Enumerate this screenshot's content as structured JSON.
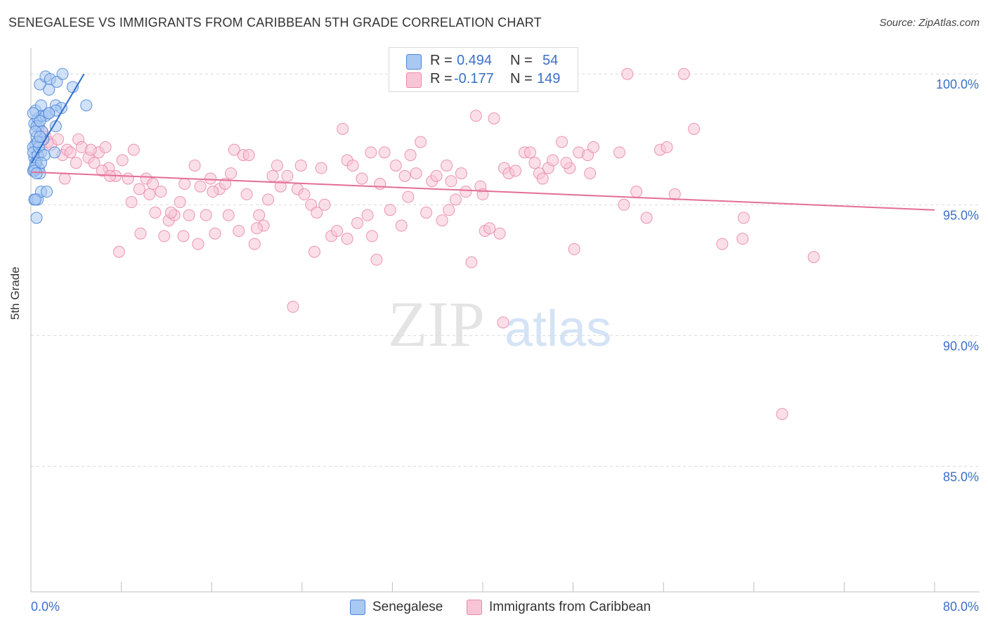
{
  "title": "SENEGALESE VS IMMIGRANTS FROM CARIBBEAN 5TH GRADE CORRELATION CHART",
  "source": "Source: ZipAtlas.com",
  "watermark": {
    "zip": "ZIP",
    "atlas": "atlas"
  },
  "legend_top": {
    "rows": [
      {
        "r_label": "R =",
        "r_value": "0.494",
        "n_label": "N =",
        "n_value": "54"
      },
      {
        "r_label": "R =",
        "r_value": "-0.177",
        "n_label": "N =",
        "n_value": "149"
      }
    ]
  },
  "chart_data": {
    "type": "scatter",
    "title": "SENEGALESE VS IMMIGRANTS FROM CARIBBEAN 5TH GRADE CORRELATION CHART",
    "xlabel": "",
    "ylabel": "5th Grade",
    "xlim": [
      0,
      80
    ],
    "ylim": [
      80.2,
      101
    ],
    "x_tick_labels": [
      "0.0%",
      "80.0%"
    ],
    "y_ticks": [
      85,
      90,
      95,
      100
    ],
    "y_tick_labels": [
      "85.0%",
      "90.0%",
      "95.0%",
      "100.0%"
    ],
    "grid": true,
    "colors": {
      "blue_fill": "#a9c8f2",
      "blue_stroke": "#4d86d8",
      "blue_line": "#2f6ccc",
      "pink_fill": "#f7c5d6",
      "pink_stroke": "#ea8aab",
      "pink_line": "#e46e97",
      "tick_label": "#3b70c8"
    },
    "series": [
      {
        "name": "Senegalese",
        "trend": {
          "x": [
            0.05,
            4.7
          ],
          "y": [
            96.6,
            100.0
          ]
        },
        "points": [
          [
            0.2,
            96.3
          ],
          [
            0.3,
            96.8
          ],
          [
            0.4,
            97.3
          ],
          [
            0.5,
            97.6
          ],
          [
            0.3,
            98.1
          ],
          [
            0.6,
            98.3
          ],
          [
            0.4,
            98.6
          ],
          [
            0.2,
            97.2
          ],
          [
            0.5,
            96.6
          ],
          [
            0.7,
            96.4
          ],
          [
            0.8,
            96.2
          ],
          [
            0.3,
            95.2
          ],
          [
            0.6,
            95.2
          ],
          [
            0.5,
            94.5
          ],
          [
            0.9,
            95.5
          ],
          [
            1.4,
            95.5
          ],
          [
            0.9,
            97.0
          ],
          [
            1.1,
            97.5
          ],
          [
            0.7,
            98.0
          ],
          [
            1.0,
            98.4
          ],
          [
            1.3,
            98.4
          ],
          [
            0.9,
            98.8
          ],
          [
            1.6,
            98.5
          ],
          [
            2.2,
            98.8
          ],
          [
            2.7,
            98.7
          ],
          [
            0.8,
            99.6
          ],
          [
            1.3,
            99.9
          ],
          [
            1.7,
            99.8
          ],
          [
            1.6,
            99.4
          ],
          [
            2.3,
            99.7
          ],
          [
            2.8,
            100.0
          ],
          [
            3.7,
            99.5
          ],
          [
            4.9,
            98.8
          ],
          [
            0.2,
            97.0
          ],
          [
            0.4,
            96.6
          ],
          [
            0.6,
            96.9
          ],
          [
            0.3,
            96.4
          ],
          [
            0.7,
            97.2
          ],
          [
            1.2,
            96.9
          ],
          [
            0.5,
            98.0
          ],
          [
            0.8,
            98.2
          ],
          [
            1.0,
            97.8
          ],
          [
            0.2,
            98.5
          ],
          [
            0.4,
            97.8
          ],
          [
            0.6,
            97.4
          ],
          [
            0.9,
            96.6
          ],
          [
            2.2,
            98.6
          ],
          [
            2.2,
            98.0
          ],
          [
            0.4,
            95.2
          ],
          [
            0.3,
            96.3
          ],
          [
            0.5,
            96.2
          ],
          [
            0.8,
            97.6
          ],
          [
            2.1,
            97.0
          ],
          [
            1.6,
            98.5
          ]
        ]
      },
      {
        "name": "Immigrants from Caribbean",
        "trend": {
          "x": [
            0.0,
            80.0
          ],
          "y": [
            96.25,
            94.8
          ]
        },
        "points": [
          [
            1.0,
            97.8
          ],
          [
            1.3,
            97.6
          ],
          [
            1.5,
            97.4
          ],
          [
            1.8,
            97.3
          ],
          [
            2.4,
            97.5
          ],
          [
            2.8,
            96.9
          ],
          [
            3.2,
            97.1
          ],
          [
            3.5,
            97.0
          ],
          [
            4.2,
            97.5
          ],
          [
            4.5,
            97.2
          ],
          [
            5.1,
            96.8
          ],
          [
            5.6,
            96.6
          ],
          [
            6.0,
            97.0
          ],
          [
            6.6,
            97.2
          ],
          [
            6.9,
            96.4
          ],
          [
            7.5,
            96.1
          ],
          [
            8.1,
            96.7
          ],
          [
            8.6,
            96.0
          ],
          [
            9.1,
            97.1
          ],
          [
            9.6,
            95.6
          ],
          [
            10.2,
            96.0
          ],
          [
            10.5,
            95.4
          ],
          [
            11.0,
            94.7
          ],
          [
            11.5,
            95.5
          ],
          [
            11.8,
            93.8
          ],
          [
            12.2,
            94.4
          ],
          [
            12.7,
            94.6
          ],
          [
            13.2,
            95.1
          ],
          [
            13.6,
            95.8
          ],
          [
            14.0,
            94.6
          ],
          [
            14.5,
            96.5
          ],
          [
            15.0,
            95.7
          ],
          [
            15.5,
            94.6
          ],
          [
            15.9,
            96.0
          ],
          [
            16.3,
            93.9
          ],
          [
            16.7,
            95.6
          ],
          [
            17.2,
            95.8
          ],
          [
            17.7,
            96.2
          ],
          [
            18.0,
            97.1
          ],
          [
            18.4,
            94.0
          ],
          [
            18.8,
            96.9
          ],
          [
            19.3,
            96.9
          ],
          [
            19.8,
            93.5
          ],
          [
            20.2,
            94.6
          ],
          [
            20.6,
            94.2
          ],
          [
            21.0,
            95.2
          ],
          [
            21.4,
            96.1
          ],
          [
            21.8,
            96.5
          ],
          [
            22.1,
            95.7
          ],
          [
            22.7,
            96.1
          ],
          [
            23.2,
            91.1
          ],
          [
            23.6,
            95.6
          ],
          [
            23.9,
            96.5
          ],
          [
            24.2,
            95.4
          ],
          [
            24.8,
            95.0
          ],
          [
            25.3,
            94.7
          ],
          [
            25.7,
            96.4
          ],
          [
            26.0,
            95.0
          ],
          [
            26.6,
            93.8
          ],
          [
            27.1,
            94.0
          ],
          [
            27.6,
            97.9
          ],
          [
            28.0,
            96.7
          ],
          [
            28.5,
            96.5
          ],
          [
            28.9,
            94.3
          ],
          [
            29.3,
            96.0
          ],
          [
            29.8,
            94.6
          ],
          [
            30.2,
            93.8
          ],
          [
            30.6,
            92.9
          ],
          [
            30.9,
            95.8
          ],
          [
            31.3,
            97.0
          ],
          [
            31.8,
            94.8
          ],
          [
            32.3,
            96.5
          ],
          [
            32.8,
            94.2
          ],
          [
            33.1,
            96.1
          ],
          [
            33.6,
            96.9
          ],
          [
            34.1,
            96.2
          ],
          [
            34.5,
            97.4
          ],
          [
            35.0,
            94.7
          ],
          [
            35.5,
            95.9
          ],
          [
            35.9,
            96.1
          ],
          [
            36.4,
            94.4
          ],
          [
            36.8,
            96.5
          ],
          [
            37.2,
            95.9
          ],
          [
            37.6,
            95.2
          ],
          [
            38.1,
            96.2
          ],
          [
            38.5,
            95.5
          ],
          [
            39.0,
            92.8
          ],
          [
            39.4,
            98.4
          ],
          [
            39.8,
            95.7
          ],
          [
            40.2,
            94.0
          ],
          [
            40.6,
            94.1
          ],
          [
            41.0,
            98.3
          ],
          [
            41.5,
            93.9
          ],
          [
            41.9,
            96.4
          ],
          [
            42.3,
            96.2
          ],
          [
            42.9,
            96.3
          ],
          [
            43.7,
            97.0
          ],
          [
            44.2,
            97.0
          ],
          [
            45.0,
            96.2
          ],
          [
            45.3,
            96.0
          ],
          [
            45.8,
            96.4
          ],
          [
            46.2,
            96.7
          ],
          [
            47.0,
            97.4
          ],
          [
            47.7,
            96.4
          ],
          [
            48.1,
            93.3
          ],
          [
            48.5,
            97.0
          ],
          [
            49.3,
            96.9
          ],
          [
            49.8,
            97.2
          ],
          [
            49.5,
            96.2
          ],
          [
            52.1,
            97.0
          ],
          [
            52.5,
            95.0
          ],
          [
            52.8,
            100.0
          ],
          [
            53.6,
            95.5
          ],
          [
            54.5,
            94.5
          ],
          [
            55.7,
            97.1
          ],
          [
            56.3,
            97.2
          ],
          [
            57.0,
            95.4
          ],
          [
            57.8,
            100.0
          ],
          [
            58.7,
            97.9
          ],
          [
            61.2,
            93.5
          ],
          [
            63.0,
            93.7
          ],
          [
            63.1,
            94.5
          ],
          [
            66.5,
            87.0
          ],
          [
            69.3,
            93.0
          ],
          [
            7.8,
            93.2
          ],
          [
            9.7,
            93.9
          ],
          [
            13.5,
            93.8
          ],
          [
            20.0,
            94.1
          ],
          [
            25.1,
            93.2
          ],
          [
            28.0,
            93.7
          ],
          [
            30.1,
            97.0
          ],
          [
            33.4,
            95.3
          ],
          [
            37.0,
            94.8
          ],
          [
            40.0,
            95.4
          ],
          [
            41.8,
            90.5
          ],
          [
            44.6,
            96.6
          ],
          [
            47.4,
            96.6
          ],
          [
            3.0,
            96.0
          ],
          [
            4.0,
            96.6
          ],
          [
            5.3,
            97.1
          ],
          [
            6.3,
            96.3
          ],
          [
            7.0,
            96.1
          ],
          [
            8.9,
            95.1
          ],
          [
            10.8,
            95.8
          ],
          [
            12.4,
            94.7
          ],
          [
            14.8,
            93.5
          ],
          [
            16.1,
            95.5
          ],
          [
            17.5,
            94.6
          ],
          [
            19.1,
            95.4
          ]
        ]
      }
    ]
  },
  "legend_bottom": [
    "Senegalese",
    "Immigrants from Caribbean"
  ]
}
